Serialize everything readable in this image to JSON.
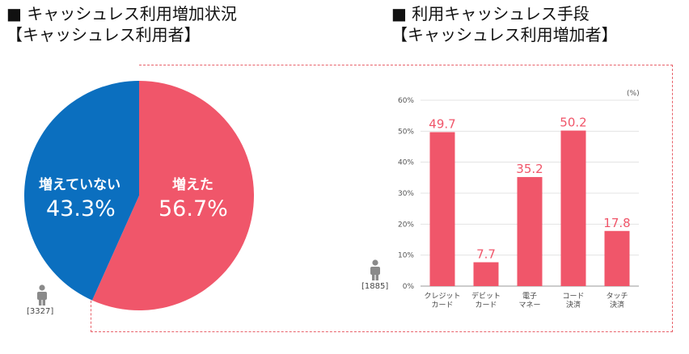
{
  "left": {
    "title_line1": "■ キャッシュレス利用増加状況",
    "title_line2": "【キャッシュレス利用者】",
    "sample": "[3327]"
  },
  "right": {
    "title_line1": "■ 利用キャッシュレス手段",
    "title_line2": "【キャッシュレス利用増加者】",
    "sample": "[1885]"
  },
  "colors": {
    "red": "#f0566a",
    "blue": "#0b6fbf",
    "dash": "#e8626a"
  },
  "chart_data": [
    {
      "type": "pie",
      "slices": [
        {
          "label": "増えた",
          "value": 56.7,
          "display": "56.7%",
          "color": "#f0566a"
        },
        {
          "label": "増えていない",
          "value": 43.3,
          "display": "43.3%",
          "color": "#0b6fbf"
        }
      ]
    },
    {
      "type": "bar",
      "unit_label": "(%)",
      "ylim": [
        0,
        60
      ],
      "yticks": [
        "0%",
        "10%",
        "20%",
        "30%",
        "40%",
        "50%",
        "60%"
      ],
      "categories": [
        [
          "クレジット",
          "カード"
        ],
        [
          "デビット",
          "カード"
        ],
        [
          "電子",
          "マネー"
        ],
        [
          "コード",
          "決済"
        ],
        [
          "タッチ",
          "決済"
        ]
      ],
      "values": [
        49.7,
        7.7,
        35.2,
        50.2,
        17.8
      ],
      "labels": [
        "49.7",
        "7.7",
        "35.2",
        "50.2",
        "17.8"
      ],
      "color": "#f0566a"
    }
  ]
}
